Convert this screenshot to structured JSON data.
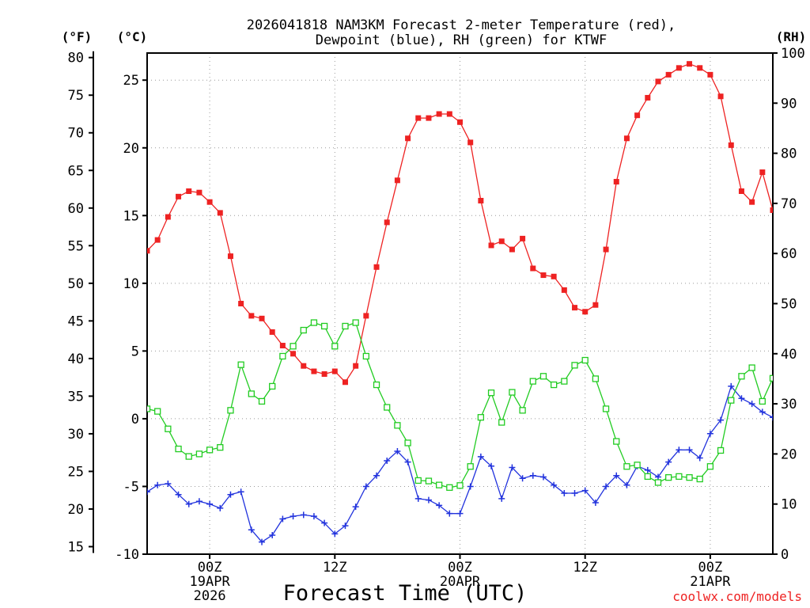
{
  "chart_data": {
    "type": "line",
    "title_line1": "2026041818 NAM3KM Forecast 2-meter Temperature (red),",
    "title_line2": "Dewpoint (blue), RH (green) for KTWF",
    "xlabel": "Forecast Time (UTC)",
    "credit": "coolwx.com/models",
    "axis_units": {
      "fahrenheit": "(°F)",
      "celsius": "(°C)",
      "rh": "(RH)"
    },
    "x_range_hours": [
      0,
      60
    ],
    "celsius_range": [
      -10,
      27
    ],
    "rh_range": [
      0,
      100
    ],
    "celsius_ticks": [
      -10,
      -5,
      0,
      5,
      10,
      15,
      20,
      25
    ],
    "fahrenheit_ticks": [
      15,
      20,
      25,
      30,
      35,
      40,
      45,
      50,
      55,
      60,
      65,
      70,
      75,
      80
    ],
    "rh_ticks": [
      0,
      10,
      20,
      30,
      40,
      50,
      60,
      70,
      80,
      90,
      100
    ],
    "x_ticks": [
      {
        "hour": 6,
        "lines": [
          "00Z",
          "19APR",
          "2026"
        ]
      },
      {
        "hour": 18,
        "lines": [
          "12Z"
        ]
      },
      {
        "hour": 30,
        "lines": [
          "00Z",
          "20APR"
        ]
      },
      {
        "hour": 42,
        "lines": [
          "12Z"
        ]
      },
      {
        "hour": 54,
        "lines": [
          "00Z",
          "21APR"
        ]
      }
    ],
    "series": [
      {
        "name": "Temperature (°C)",
        "axis": "celsius",
        "color": "#ee2222",
        "marker": "filled-square",
        "points": [
          [
            0,
            12.4
          ],
          [
            1,
            13.2
          ],
          [
            2,
            14.9
          ],
          [
            3,
            16.4
          ],
          [
            4,
            16.8
          ],
          [
            5,
            16.7
          ],
          [
            6,
            16.0
          ],
          [
            7,
            15.2
          ],
          [
            8,
            12.0
          ],
          [
            9,
            8.5
          ],
          [
            10,
            7.6
          ],
          [
            11,
            7.4
          ],
          [
            12,
            6.4
          ],
          [
            13,
            5.4
          ],
          [
            14,
            4.8
          ],
          [
            15,
            3.9
          ],
          [
            16,
            3.5
          ],
          [
            17,
            3.3
          ],
          [
            18,
            3.5
          ],
          [
            19,
            2.7
          ],
          [
            20,
            3.9
          ],
          [
            21,
            7.6
          ],
          [
            22,
            11.2
          ],
          [
            23,
            14.5
          ],
          [
            24,
            17.6
          ],
          [
            25,
            20.7
          ],
          [
            26,
            22.2
          ],
          [
            27,
            22.2
          ],
          [
            28,
            22.5
          ],
          [
            29,
            22.5
          ],
          [
            30,
            21.9
          ],
          [
            31,
            20.4
          ],
          [
            32,
            16.1
          ],
          [
            33,
            12.8
          ],
          [
            34,
            13.1
          ],
          [
            35,
            12.5
          ],
          [
            36,
            13.3
          ],
          [
            37,
            11.1
          ],
          [
            38,
            10.6
          ],
          [
            39,
            10.5
          ],
          [
            40,
            9.5
          ],
          [
            41,
            8.2
          ],
          [
            42,
            7.9
          ],
          [
            43,
            8.4
          ],
          [
            44,
            12.5
          ],
          [
            45,
            17.5
          ],
          [
            46,
            20.7
          ],
          [
            47,
            22.4
          ],
          [
            48,
            23.7
          ],
          [
            49,
            24.9
          ],
          [
            50,
            25.4
          ],
          [
            51,
            25.9
          ],
          [
            52,
            26.2
          ],
          [
            53,
            25.9
          ],
          [
            54,
            25.4
          ],
          [
            55,
            23.8
          ],
          [
            56,
            20.2
          ],
          [
            57,
            16.8
          ],
          [
            58,
            16.0
          ],
          [
            59,
            18.2
          ],
          [
            60,
            15.4
          ]
        ]
      },
      {
        "name": "Dewpoint (°C)",
        "axis": "celsius",
        "color": "#2233dd",
        "marker": "plus",
        "points": [
          [
            0,
            -5.4
          ],
          [
            1,
            -4.9
          ],
          [
            2,
            -4.8
          ],
          [
            3,
            -5.6
          ],
          [
            4,
            -6.3
          ],
          [
            5,
            -6.1
          ],
          [
            6,
            -6.3
          ],
          [
            7,
            -6.6
          ],
          [
            8,
            -5.6
          ],
          [
            9,
            -5.4
          ],
          [
            10,
            -8.2
          ],
          [
            11,
            -9.1
          ],
          [
            12,
            -8.6
          ],
          [
            13,
            -7.4
          ],
          [
            14,
            -7.2
          ],
          [
            15,
            -7.1
          ],
          [
            16,
            -7.2
          ],
          [
            17,
            -7.7
          ],
          [
            18,
            -8.5
          ],
          [
            19,
            -7.9
          ],
          [
            20,
            -6.5
          ],
          [
            21,
            -5.0
          ],
          [
            22,
            -4.2
          ],
          [
            23,
            -3.1
          ],
          [
            24,
            -2.4
          ],
          [
            25,
            -3.2
          ],
          [
            26,
            -5.9
          ],
          [
            27,
            -6.0
          ],
          [
            28,
            -6.4
          ],
          [
            29,
            -7.0
          ],
          [
            30,
            -7.0
          ],
          [
            31,
            -5.0
          ],
          [
            32,
            -2.8
          ],
          [
            33,
            -3.5
          ],
          [
            34,
            -5.9
          ],
          [
            35,
            -3.6
          ],
          [
            36,
            -4.4
          ],
          [
            37,
            -4.2
          ],
          [
            38,
            -4.3
          ],
          [
            39,
            -4.9
          ],
          [
            40,
            -5.5
          ],
          [
            41,
            -5.5
          ],
          [
            42,
            -5.3
          ],
          [
            43,
            -6.2
          ],
          [
            44,
            -5.0
          ],
          [
            45,
            -4.2
          ],
          [
            46,
            -4.9
          ],
          [
            47,
            -3.5
          ],
          [
            48,
            -3.8
          ],
          [
            49,
            -4.3
          ],
          [
            50,
            -3.2
          ],
          [
            51,
            -2.3
          ],
          [
            52,
            -2.3
          ],
          [
            53,
            -2.9
          ],
          [
            54,
            -1.1
          ],
          [
            55,
            -0.1
          ],
          [
            56,
            2.4
          ],
          [
            57,
            1.5
          ],
          [
            58,
            1.1
          ],
          [
            59,
            0.5
          ],
          [
            60,
            0.1
          ]
        ]
      },
      {
        "name": "Relative Humidity (%)",
        "axis": "rh",
        "color": "#22cc22",
        "marker": "open-square",
        "points": [
          [
            0,
            29
          ],
          [
            1,
            28.5
          ],
          [
            2,
            25
          ],
          [
            3,
            21
          ],
          [
            4,
            19.5
          ],
          [
            5,
            20
          ],
          [
            6,
            20.8
          ],
          [
            7,
            21.3
          ],
          [
            8,
            28.7
          ],
          [
            9,
            37.8
          ],
          [
            10,
            32
          ],
          [
            11,
            30.5
          ],
          [
            12,
            33.5
          ],
          [
            13,
            39.5
          ],
          [
            14,
            41.5
          ],
          [
            15,
            44.7
          ],
          [
            16,
            46.2
          ],
          [
            17,
            45.5
          ],
          [
            18,
            41.5
          ],
          [
            19,
            45.5
          ],
          [
            20,
            46.2
          ],
          [
            21,
            39.5
          ],
          [
            22,
            33.8
          ],
          [
            23,
            29.3
          ],
          [
            24,
            25.7
          ],
          [
            25,
            22.2
          ],
          [
            26,
            14.7
          ],
          [
            27,
            14.6
          ],
          [
            28,
            13.8
          ],
          [
            29,
            13.3
          ],
          [
            30,
            13.7
          ],
          [
            31,
            17.5
          ],
          [
            32,
            27.3
          ],
          [
            33,
            32.2
          ],
          [
            34,
            26.3
          ],
          [
            35,
            32.3
          ],
          [
            36,
            28.7
          ],
          [
            37,
            34.5
          ],
          [
            38,
            35.5
          ],
          [
            39,
            33.8
          ],
          [
            40,
            34.5
          ],
          [
            41,
            37.7
          ],
          [
            42,
            38.7
          ],
          [
            43,
            35
          ],
          [
            44,
            29
          ],
          [
            45,
            22.5
          ],
          [
            46,
            17.5
          ],
          [
            47,
            17.8
          ],
          [
            48,
            15.5
          ],
          [
            49,
            14.3
          ],
          [
            50,
            15.3
          ],
          [
            51,
            15.5
          ],
          [
            52,
            15.3
          ],
          [
            53,
            15
          ],
          [
            54,
            17.5
          ],
          [
            55,
            20.7
          ],
          [
            56,
            30.7
          ],
          [
            57,
            35.5
          ],
          [
            58,
            37.2
          ],
          [
            59,
            30.5
          ],
          [
            60,
            35.1
          ]
        ]
      }
    ]
  }
}
